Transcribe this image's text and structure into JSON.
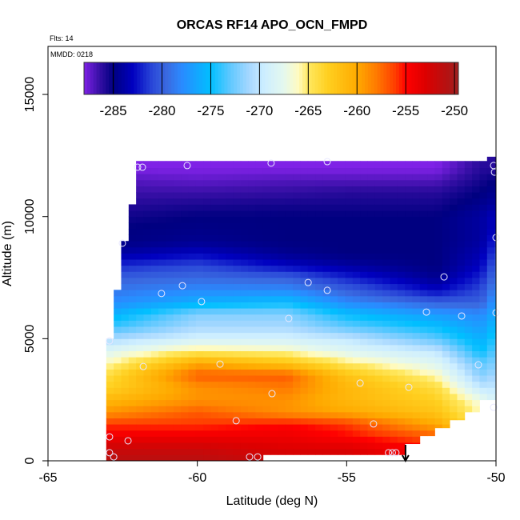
{
  "chart_data": {
    "type": "heatmap",
    "title": "ORCAS RF14 APO_OCN_FMPD",
    "xlabel": "Latitude (deg N)",
    "ylabel": "Altitude (m)",
    "xlim": [
      -65,
      -50
    ],
    "ylim": [
      0,
      16967
    ],
    "xticks": [
      -65,
      -60,
      -55,
      -50
    ],
    "xtick_labels": [
      "-65",
      "-60",
      "-55",
      "-50"
    ],
    "yticks": [
      0,
      5000,
      10000,
      15000
    ],
    "ytick_labels": [
      "0",
      "5000",
      "10000",
      "15000"
    ],
    "annotations": {
      "flights": "Flts: 14",
      "mmdd": "MMDD: 0218"
    },
    "colorbar": {
      "min": -288,
      "max": -249.6,
      "ticks": [
        -285,
        -280,
        -275,
        -270,
        -265,
        -260,
        -255,
        -250
      ],
      "tick_labels": [
        "-285",
        "-280",
        "-275",
        "-270",
        "-265",
        "-260",
        "-255",
        "-250"
      ],
      "placement": "top",
      "stops": [
        [
          -288,
          "#7f22e6"
        ],
        [
          -286.5,
          "#3a10a8"
        ],
        [
          -285,
          "#000080"
        ],
        [
          -283,
          "#0000c0"
        ],
        [
          -281,
          "#2a48d8"
        ],
        [
          -279.5,
          "#3a6ae0"
        ],
        [
          -278,
          "#2a8aff"
        ],
        [
          -275,
          "#00bfff"
        ],
        [
          -273,
          "#60c8ff"
        ],
        [
          -271,
          "#a8d8ff"
        ],
        [
          -269.5,
          "#cdeeff"
        ],
        [
          -267.5,
          "#e4f8ee"
        ],
        [
          -266,
          "#fffbc0"
        ],
        [
          -265,
          "#ffe860"
        ],
        [
          -263,
          "#ffd020"
        ],
        [
          -260,
          "#ffaa00"
        ],
        [
          -258,
          "#ff7a00"
        ],
        [
          -256,
          "#ff3a00"
        ],
        [
          -255,
          "#ff0000"
        ],
        [
          -253,
          "#dd0000"
        ],
        [
          -251,
          "#b81010"
        ],
        [
          -249.6,
          "#a02020"
        ]
      ]
    },
    "grid": {
      "lats": [
        -63,
        -60,
        -57,
        -55,
        -52,
        -50.5,
        -50
      ],
      "alts": [
        0,
        500,
        1000,
        1500,
        2000,
        2500,
        3000,
        3500,
        4000,
        4500,
        5000,
        5500,
        6000,
        6500,
        7000,
        7500,
        8000,
        8500,
        9000,
        9500,
        10000,
        10500,
        11000,
        11500,
        12000
      ],
      "values": [
        [
          -251,
          -252,
          -254,
          -256,
          -259,
          -261,
          -263,
          -264,
          -266,
          -268,
          -271,
          -274,
          -276,
          -278,
          -279,
          -280,
          -282,
          -284,
          -285,
          -285,
          -285.5,
          -286,
          -286.5,
          -287,
          -288
        ],
        [
          -251,
          -252,
          -254,
          -256,
          -257,
          -259,
          -259,
          -257,
          -260,
          -265,
          -269,
          -271,
          -272,
          -276,
          -278,
          -279.5,
          -281,
          -283,
          -284.5,
          -284.8,
          -285,
          -285.7,
          -286.5,
          -287.3,
          -288
        ],
        [
          -252,
          -253,
          -254,
          -255,
          -259,
          -259,
          -258,
          -257,
          -262,
          -266,
          -269,
          -271,
          -272,
          -275,
          -278,
          -280,
          -283,
          -284.5,
          -285,
          -285,
          -285,
          -285.5,
          -286.3,
          -287,
          -288
        ],
        [
          -252,
          -253,
          -255,
          -256,
          -260,
          -261,
          -261,
          -262,
          -265,
          -268,
          -270,
          -273,
          -275,
          -278,
          -280,
          -282,
          -284,
          -285,
          -285,
          -285,
          -285,
          -285.5,
          -286,
          -287,
          -288
        ],
        [
          -255,
          -255,
          -257,
          -260,
          -262,
          -263,
          -264,
          -266,
          -268,
          -270,
          -273,
          -275,
          -277,
          -280,
          -283,
          -284.5,
          -285,
          -285,
          -285,
          -285,
          -285,
          -285.5,
          -286,
          -287,
          -288
        ],
        [
          -262,
          -263,
          -264,
          -265,
          -266,
          -267,
          -270,
          -272,
          -273,
          -275,
          -276,
          -277,
          -278,
          -280,
          -281,
          -282,
          -283,
          -283.5,
          -284,
          -284,
          -284,
          -284.5,
          -285,
          -285.5,
          -286
        ],
        [
          -264,
          -265,
          -266,
          -267,
          -268,
          -269,
          -270,
          -271,
          -272,
          -273,
          -274,
          -275,
          -276,
          -277,
          -278,
          -279,
          -280,
          -281,
          -282,
          -283,
          -283,
          -284,
          -284.5,
          -285,
          -286
        ]
      ]
    },
    "extent": [
      [
        -63.05,
        -62.8,
        0,
        5000
      ],
      [
        -62.8,
        -62.55,
        0,
        7000
      ],
      [
        -62.55,
        -62.25,
        0,
        9000
      ],
      [
        -62.25,
        -62.05,
        0,
        10500
      ],
      [
        -62.05,
        -57.8,
        0,
        12280
      ],
      [
        -57.8,
        -53.1,
        260,
        12280
      ],
      [
        -53.1,
        -52.5,
        690,
        12280
      ],
      [
        -52.5,
        -52,
        1015,
        12280
      ],
      [
        -52,
        -51.5,
        1340,
        12280
      ],
      [
        -51.5,
        -51,
        1670,
        12280
      ],
      [
        -51,
        -50.5,
        2000,
        12280
      ],
      [
        -50.5,
        -50.3,
        2490,
        12280
      ],
      [
        -50.3,
        -50,
        2490,
        12450
      ]
    ],
    "samples": [
      [
        -62.94,
        4910
      ],
      [
        -62.51,
        8910
      ],
      [
        -62.0,
        12020
      ],
      [
        -61.84,
        12020
      ],
      [
        -60.34,
        12090
      ],
      [
        -61.2,
        6850
      ],
      [
        -60.5,
        7170
      ],
      [
        -59.86,
        6520
      ],
      [
        -56.94,
        5830
      ],
      [
        -57.53,
        12190
      ],
      [
        -55.65,
        12250
      ],
      [
        -56.29,
        7300
      ],
      [
        -55.65,
        6980
      ],
      [
        -51.74,
        7530
      ],
      [
        -52.33,
        6090
      ],
      [
        -51.15,
        5930
      ],
      [
        -50.59,
        3930
      ],
      [
        -50.08,
        12090
      ],
      [
        -50.05,
        11820
      ],
      [
        -50.0,
        9140
      ],
      [
        -50.0,
        6060
      ],
      [
        -50.08,
        2190
      ],
      [
        -61.81,
        3860
      ],
      [
        -59.24,
        3960
      ],
      [
        -57.5,
        2750
      ],
      [
        -54.55,
        3180
      ],
      [
        -52.92,
        3010
      ],
      [
        -58.7,
        1640
      ],
      [
        -54.1,
        1510
      ],
      [
        -62.94,
        980
      ],
      [
        -62.32,
        820
      ],
      [
        -62.94,
        330
      ],
      [
        -62.8,
        160
      ],
      [
        -58.25,
        160
      ],
      [
        -57.98,
        160
      ],
      [
        -53.6,
        330
      ],
      [
        -53.47,
        330
      ],
      [
        -53.35,
        330
      ]
    ],
    "arrow_lat": -53.03
  }
}
